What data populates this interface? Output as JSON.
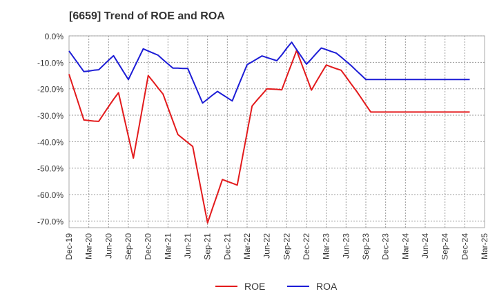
{
  "chart_data": {
    "type": "line",
    "title": "[6659]  Trend of ROE and ROA",
    "xlabel": "",
    "ylabel": "",
    "categories": [
      "Dec-19",
      "Mar-20",
      "Jun-20",
      "Sep-20",
      "Dec-20",
      "Mar-21",
      "Jun-21",
      "Sep-21",
      "Dec-21",
      "Mar-22",
      "Jun-22",
      "Sep-22",
      "Dec-22",
      "Mar-23",
      "Jun-23",
      "Sep-23",
      "Dec-23",
      "Mar-24",
      "Jun-24",
      "Sep-24",
      "Dec-24",
      "Mar-25"
    ],
    "y_ticks": [
      "0.0%",
      "-10.0%",
      "-20.0%",
      "-30.0%",
      "-40.0%",
      "-50.0%",
      "-60.0%",
      "-70.0%"
    ],
    "y_tick_values": [
      0,
      -10,
      -20,
      -30,
      -40,
      -50,
      -60,
      -70
    ],
    "ylim": [
      -72.5,
      0
    ],
    "x_tick_indices": [
      0,
      4,
      8,
      12,
      16,
      20,
      24,
      28,
      32,
      36,
      40,
      44,
      48,
      52,
      56,
      60,
      64,
      68,
      72,
      76,
      80,
      84
    ],
    "x_range": [
      0,
      84
    ],
    "grid": true,
    "legend_position": "bottom",
    "series": [
      {
        "name": "ROE",
        "color": "#e31a1c",
        "x": [
          0,
          3,
          4,
          5,
          6,
          7,
          8,
          9,
          10,
          11,
          12,
          13,
          14,
          15,
          16,
          17,
          18,
          19,
          20,
          21,
          22,
          23,
          24,
          25,
          26,
          27,
          28,
          29,
          30,
          31,
          32,
          33,
          34,
          35,
          36,
          37,
          38,
          39,
          40,
          41,
          42,
          43,
          44,
          45,
          46,
          47,
          48,
          49,
          50,
          51,
          52,
          53,
          54,
          55,
          56,
          57,
          58,
          59,
          60,
          61,
          62,
          63,
          64,
          65,
          66,
          67,
          68,
          69,
          70,
          71,
          72,
          73,
          74,
          75,
          76,
          77,
          78,
          79,
          80,
          81
        ],
        "values": [
          -14.5,
          -31.8,
          -32.0,
          -32.2,
          -32.3,
          -29.5,
          -26.7,
          -24.0,
          -21.5,
          -29.7,
          -38.0,
          -46.2,
          -36.0,
          -25.5,
          -15.0,
          -17.3,
          -19.7,
          -22.0,
          -27.1,
          -32.2,
          -37.3,
          -38.8,
          -40.3,
          -41.8,
          -51.4,
          -61.1,
          -70.7,
          -65.2,
          -59.8,
          -54.3,
          -55.0,
          -55.7,
          -56.4,
          -46.5,
          -36.5,
          -26.5,
          -24.3,
          -22.2,
          -20.0,
          -20.1,
          -20.2,
          -20.4,
          -15.4,
          -10.5,
          -5.5,
          -10.5,
          -15.5,
          -20.5,
          -17.3,
          -14.1,
          -11.0,
          -11.7,
          -12.4,
          -13.0,
          -15.5,
          -18.1,
          -20.6,
          -23.3,
          -26.1,
          -28.8,
          -28.8,
          -28.8,
          -28.8,
          -28.8,
          -28.8,
          -28.8,
          -28.8,
          -28.8,
          -28.8,
          -28.8,
          -28.8,
          -28.8,
          -28.8,
          -28.8,
          -28.8,
          -28.8,
          -28.8,
          -28.8,
          -28.8,
          -28.8
        ]
      },
      {
        "name": "ROA",
        "color": "#1c1cd6",
        "x": [
          0,
          3,
          4,
          5,
          6,
          7,
          8,
          9,
          10,
          11,
          12,
          13,
          14,
          15,
          16,
          17,
          18,
          19,
          20,
          21,
          22,
          23,
          24,
          25,
          26,
          27,
          28,
          29,
          30,
          31,
          32,
          33,
          34,
          35,
          36,
          37,
          38,
          39,
          40,
          41,
          42,
          43,
          44,
          45,
          46,
          47,
          48,
          49,
          50,
          51,
          52,
          53,
          54,
          55,
          56,
          57,
          58,
          59,
          60,
          61,
          62,
          63,
          64,
          65,
          66,
          67,
          68,
          69,
          70,
          71,
          72,
          73,
          74,
          75,
          76,
          77,
          78,
          79,
          80,
          81
        ],
        "values": [
          -5.7,
          -13.5,
          -13.3,
          -13.0,
          -12.8,
          -11.0,
          -9.2,
          -7.5,
          -10.5,
          -13.5,
          -16.5,
          -12.6,
          -8.8,
          -4.9,
          -5.7,
          -6.5,
          -7.3,
          -9.0,
          -10.6,
          -12.2,
          -12.2,
          -12.3,
          -12.3,
          -16.7,
          -21.0,
          -25.4,
          -23.9,
          -22.4,
          -21.0,
          -22.2,
          -23.4,
          -24.6,
          -19.9,
          -15.4,
          -10.9,
          -9.8,
          -8.7,
          -7.6,
          -8.2,
          -8.8,
          -9.4,
          -7.2,
          -4.7,
          -2.4,
          -5.2,
          -7.9,
          -10.7,
          -8.7,
          -6.6,
          -4.6,
          -5.2,
          -5.9,
          -6.5,
          -8.0,
          -9.6,
          -11.2,
          -13.0,
          -14.7,
          -16.5,
          -16.5,
          -16.5,
          -16.5,
          -16.5,
          -16.5,
          -16.5,
          -16.5,
          -16.5,
          -16.5,
          -16.5,
          -16.5,
          -16.5,
          -16.5,
          -16.5,
          -16.5,
          -16.5,
          -16.5,
          -16.5,
          -16.5,
          -16.5,
          -16.5
        ]
      }
    ]
  }
}
